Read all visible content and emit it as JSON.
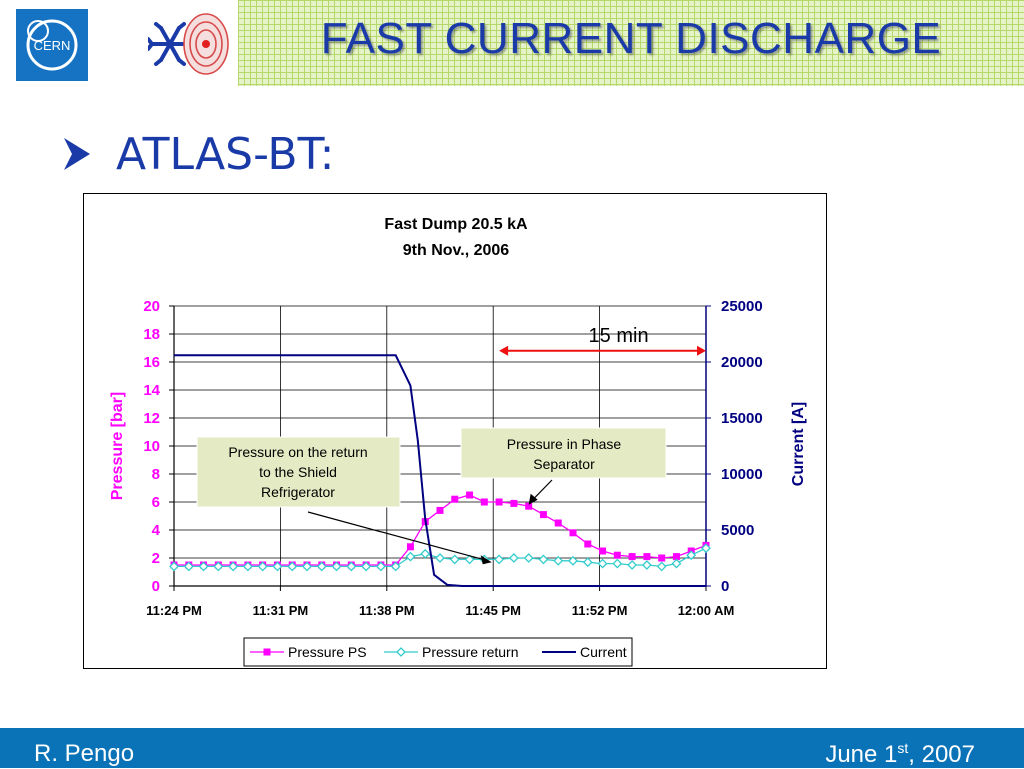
{
  "header": {
    "title": "FAST CURRENT DISCHARGE",
    "logo_text": "CERN"
  },
  "bullet": {
    "icon": "arrow-bullet-icon",
    "text": "ATLAS-BT:"
  },
  "colors": {
    "accent_blue": "#1a3aa8",
    "footer_blue": "#0a73b8",
    "pressure_ps": "#ff00ff",
    "pressure_return": "#33cccc",
    "current": "#000080",
    "annotation_arrow": "#ee1111",
    "callout_fill": "#e4ebc4"
  },
  "chart_data": {
    "type": "line",
    "title": "Fast Dump 20.5 kA",
    "subtitle": "9th Nov., 2006",
    "ylabel": "Pressure [bar]",
    "y2label": "Current [A]",
    "ylim": [
      0,
      20
    ],
    "y2lim": [
      0,
      25000
    ],
    "yticks": [
      "0",
      "2",
      "4",
      "6",
      "8",
      "10",
      "12",
      "14",
      "16",
      "18",
      "20"
    ],
    "y2ticks": [
      "0",
      "5000",
      "10000",
      "15000",
      "20000",
      "25000"
    ],
    "xticks": [
      "11:24 PM",
      "11:31 PM",
      "11:38 PM",
      "11:45 PM",
      "11:52 PM",
      "12:00 AM"
    ],
    "grid": true,
    "legend_position": "bottom",
    "series": [
      {
        "name": "Pressure PS",
        "axis": "left",
        "marker": "square",
        "color": "#ff00ff",
        "points": [
          [
            0,
            1.5
          ],
          [
            1,
            1.5
          ],
          [
            2,
            1.5
          ],
          [
            3,
            1.5
          ],
          [
            4,
            1.5
          ],
          [
            5,
            1.5
          ],
          [
            6,
            1.5
          ],
          [
            7,
            1.5
          ],
          [
            8,
            1.5
          ],
          [
            9,
            1.5
          ],
          [
            10,
            1.5
          ],
          [
            11,
            1.5
          ],
          [
            12,
            1.5
          ],
          [
            13,
            1.5
          ],
          [
            14,
            1.5
          ],
          [
            15,
            1.5
          ],
          [
            16,
            2.8
          ],
          [
            17,
            4.6
          ],
          [
            18,
            5.4
          ],
          [
            19,
            6.2
          ],
          [
            20,
            6.5
          ],
          [
            21,
            6
          ],
          [
            22,
            6
          ],
          [
            23,
            5.9
          ],
          [
            24,
            5.7
          ],
          [
            25,
            5.1
          ],
          [
            26,
            4.5
          ],
          [
            27,
            3.8
          ],
          [
            28,
            3
          ],
          [
            29,
            2.5
          ],
          [
            30,
            2.2
          ],
          [
            31,
            2.1
          ],
          [
            32,
            2.1
          ],
          [
            33,
            2
          ],
          [
            34,
            2.1
          ],
          [
            35,
            2.5
          ],
          [
            36,
            2.9
          ]
        ]
      },
      {
        "name": "Pressure return",
        "axis": "left",
        "marker": "diamond",
        "color": "#33cccc",
        "points": [
          [
            0,
            1.4
          ],
          [
            1,
            1.4
          ],
          [
            2,
            1.4
          ],
          [
            3,
            1.4
          ],
          [
            4,
            1.4
          ],
          [
            5,
            1.4
          ],
          [
            6,
            1.4
          ],
          [
            7,
            1.4
          ],
          [
            8,
            1.4
          ],
          [
            9,
            1.4
          ],
          [
            10,
            1.4
          ],
          [
            11,
            1.4
          ],
          [
            12,
            1.4
          ],
          [
            13,
            1.4
          ],
          [
            14,
            1.4
          ],
          [
            15,
            1.4
          ],
          [
            16,
            2.1
          ],
          [
            17,
            2.3
          ],
          [
            18,
            2
          ],
          [
            19,
            1.9
          ],
          [
            20,
            1.9
          ],
          [
            21,
            1.9
          ],
          [
            22,
            1.9
          ],
          [
            23,
            2
          ],
          [
            24,
            2
          ],
          [
            25,
            1.9
          ],
          [
            26,
            1.8
          ],
          [
            27,
            1.8
          ],
          [
            28,
            1.7
          ],
          [
            29,
            1.6
          ],
          [
            30,
            1.6
          ],
          [
            31,
            1.5
          ],
          [
            32,
            1.5
          ],
          [
            33,
            1.4
          ],
          [
            34,
            1.6
          ],
          [
            35,
            2.2
          ],
          [
            36,
            2.7
          ]
        ]
      },
      {
        "name": "Current",
        "axis": "right",
        "marker": "none",
        "color": "#000080",
        "points": [
          [
            0,
            20600
          ],
          [
            15,
            20600
          ],
          [
            16,
            17900
          ],
          [
            16.5,
            13000
          ],
          [
            17,
            6000
          ],
          [
            17.6,
            1000
          ],
          [
            18.5,
            100
          ],
          [
            19.5,
            0
          ],
          [
            36,
            0
          ]
        ]
      }
    ],
    "annotations": [
      {
        "text": "15 min",
        "type": "double-arrow",
        "from_x": 22,
        "to_x": 36,
        "y2": 21000
      },
      {
        "text": "Pressure on the return\nto the Shield\nRefrigerator",
        "type": "callout",
        "points_to": [
          21.5,
          1.7
        ]
      },
      {
        "text": "Pressure in Phase\nSeparator",
        "type": "callout",
        "points_to": [
          24,
          5.8
        ]
      }
    ]
  },
  "footer": {
    "author": "R. Pengo",
    "date_prefix": "June 1",
    "date_sup": "st",
    "date_suffix": ", 2007"
  }
}
